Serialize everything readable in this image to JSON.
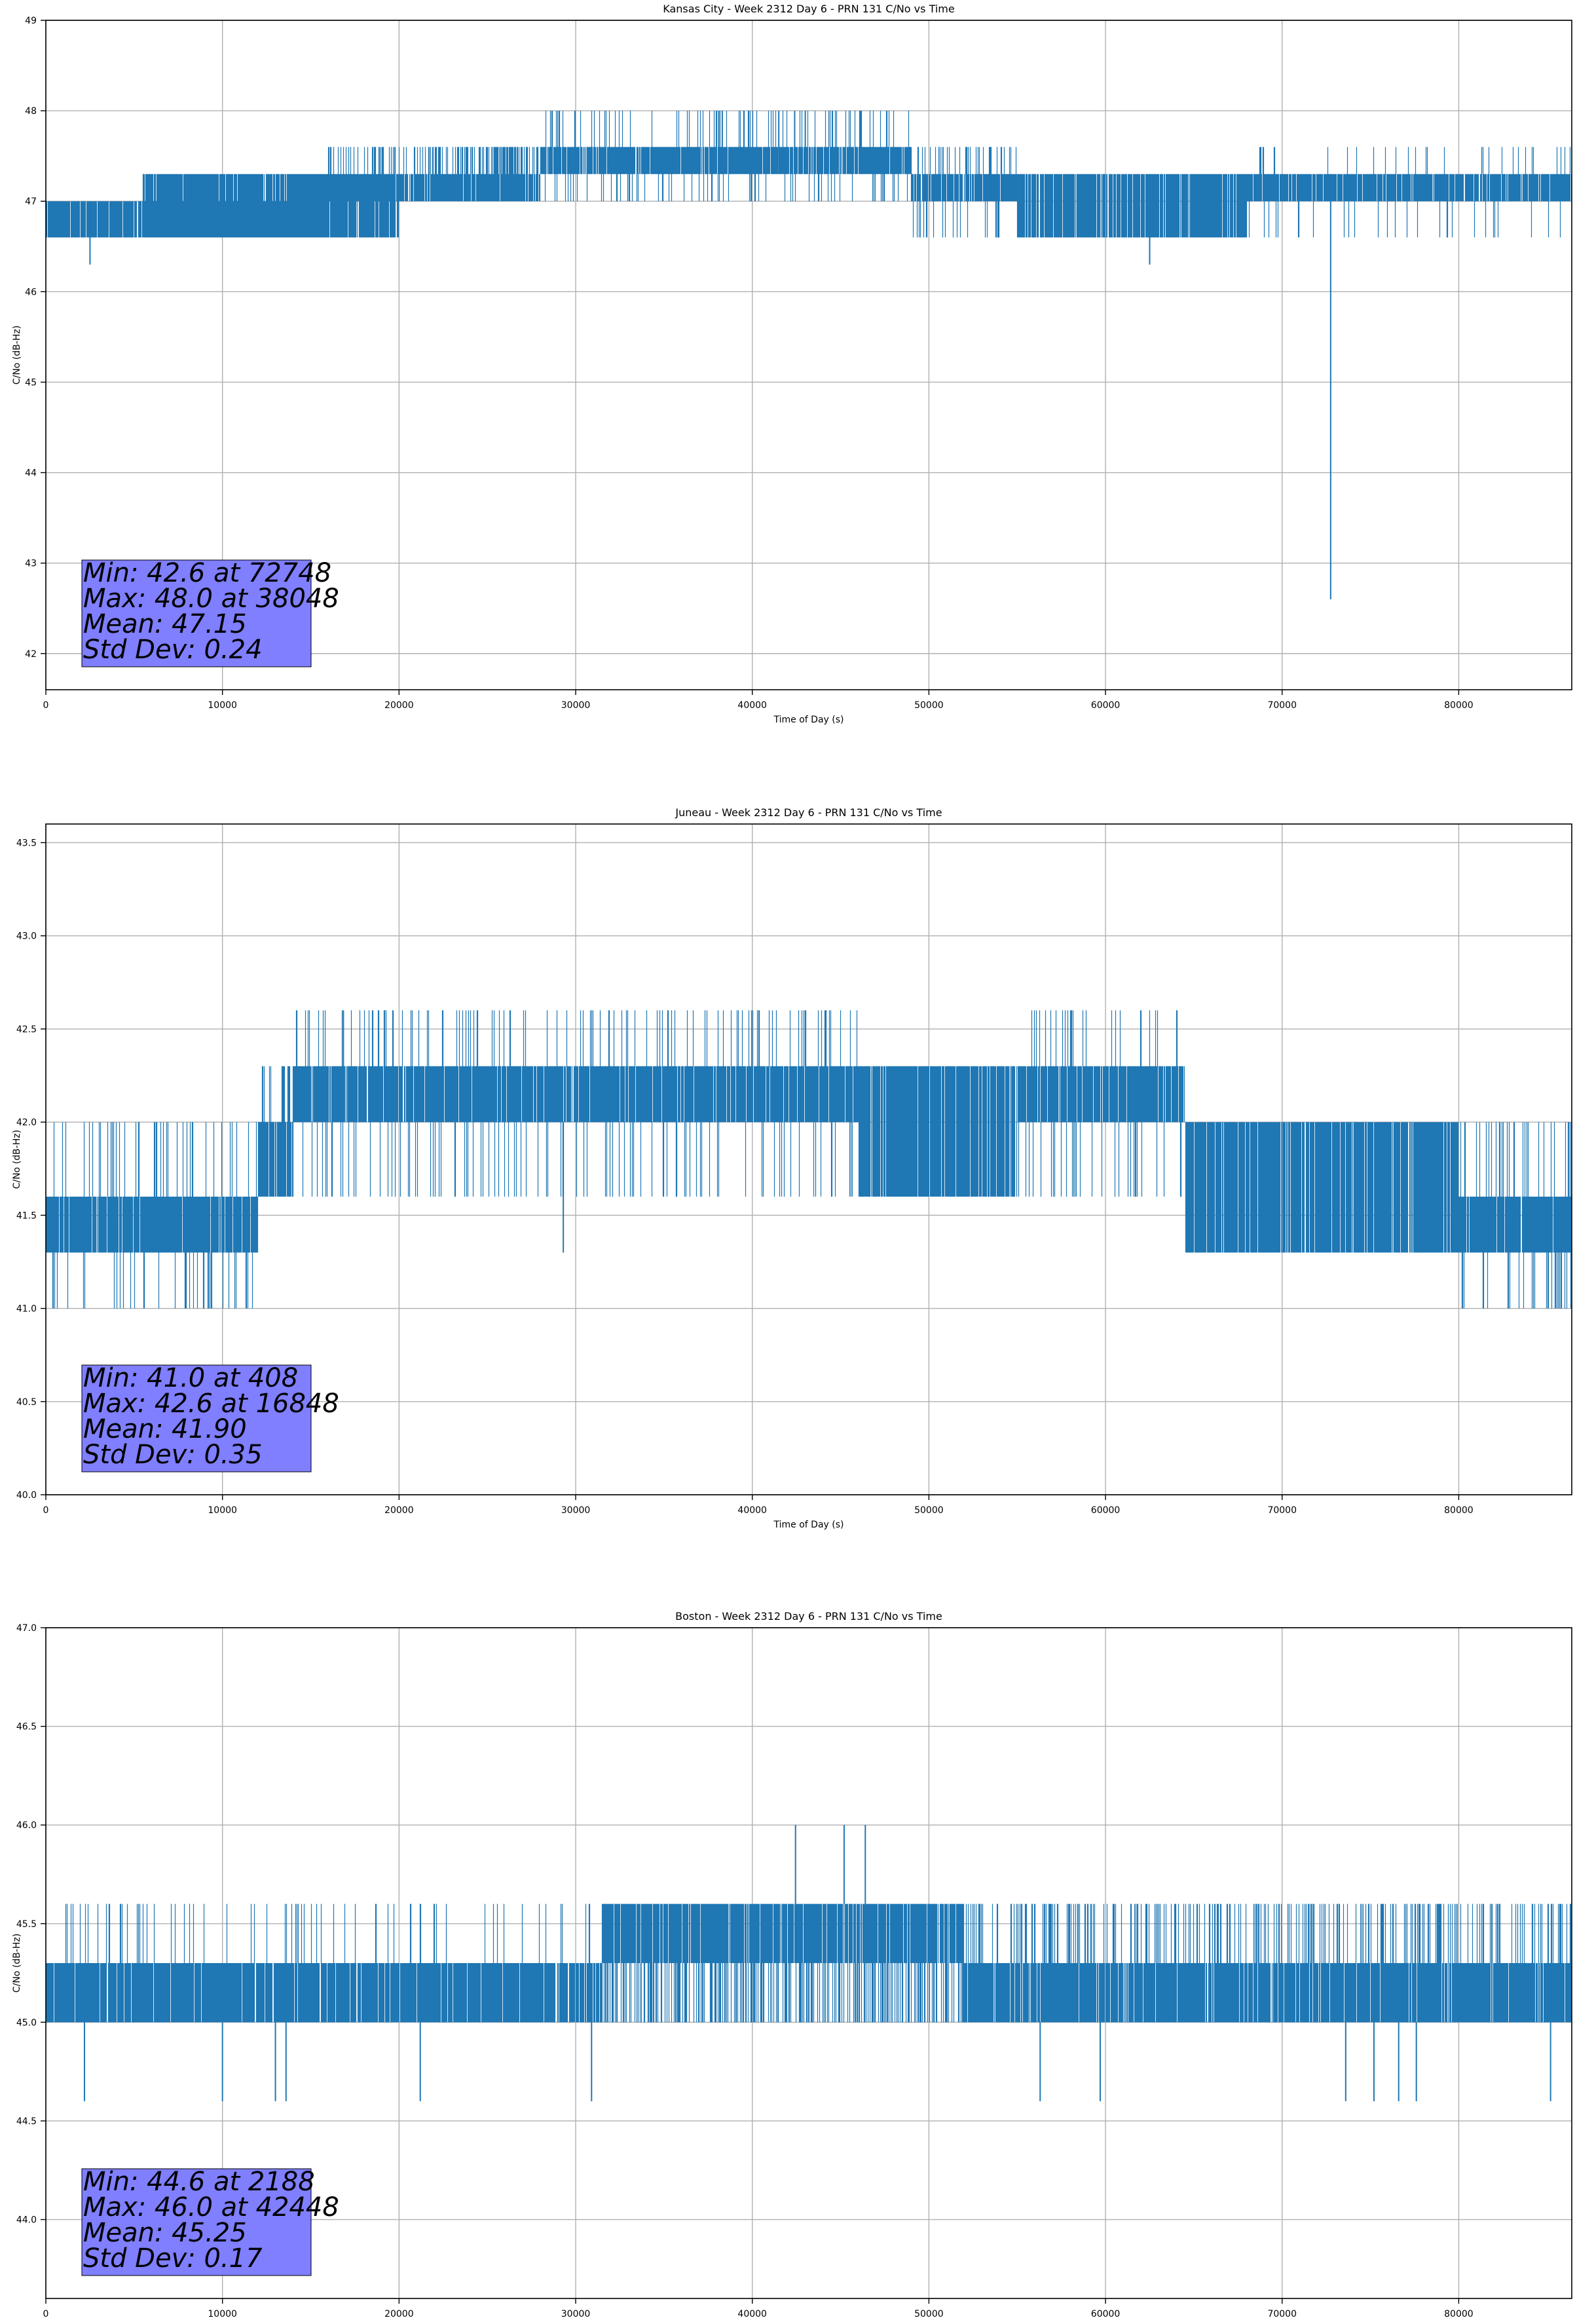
{
  "chart_data": [
    {
      "type": "line",
      "title": "Kansas City - Week 2312 Day 6 - PRN 131 C/No vs Time",
      "xlabel": "Time of Day (s)",
      "ylabel": "C/No (dB-Hz)",
      "xlim": [
        0,
        86400
      ],
      "ylim": [
        41.6,
        49
      ],
      "xticks": [
        0,
        10000,
        20000,
        30000,
        40000,
        50000,
        60000,
        70000,
        80000
      ],
      "yticks": [
        42,
        43,
        44,
        45,
        46,
        47,
        48,
        49
      ],
      "ytick_labels": [
        "42",
        "43",
        "44",
        "45",
        "46",
        "47",
        "48",
        "49"
      ],
      "grid": true,
      "color": "#1f77b4",
      "stats": [
        "Min: 42.6 at 72748",
        "Max: 48.0 at 38048",
        "Mean: 47.15",
        "Std Dev: 0.24"
      ],
      "series": [
        {
          "segments": [
            {
              "x0": 0,
              "x1": 16000,
              "lo": 46.6,
              "hi": 47.0,
              "alt": [
                46.6,
                47.0
              ],
              "frac": 0.55
            },
            {
              "x0": 5500,
              "x1": 20000,
              "lo": 46.6,
              "hi": 47.3,
              "alt": [
                46.6,
                47.3
              ],
              "frac": 0.25
            },
            {
              "x0": 16000,
              "x1": 22000,
              "lo": 47.0,
              "hi": 47.3,
              "alt": [
                47.6
              ],
              "frac": 0.2
            },
            {
              "x0": 22000,
              "x1": 28000,
              "lo": 47.0,
              "hi": 47.3,
              "alt": [
                47.6
              ],
              "frac": 0.45
            },
            {
              "x0": 28000,
              "x1": 49000,
              "lo": 47.3,
              "hi": 47.6,
              "alt": [
                47.0,
                48.0
              ],
              "frac": 0.25
            },
            {
              "x0": 49000,
              "x1": 55000,
              "lo": 47.0,
              "hi": 47.3,
              "alt": [
                46.6,
                47.6
              ],
              "frac": 0.35
            },
            {
              "x0": 55000,
              "x1": 68000,
              "lo": 46.6,
              "hi": 47.3,
              "alt": [
                46.6,
                47.3
              ],
              "frac": 0.4
            },
            {
              "x0": 68000,
              "x1": 86400,
              "lo": 47.0,
              "hi": 47.3,
              "alt": [
                46.6,
                47.6
              ],
              "frac": 0.12
            }
          ],
          "spikes": [
            {
              "x": 2500,
              "y0": 46.3,
              "y1": 47.0
            },
            {
              "x": 62500,
              "y0": 46.3,
              "y1": 47.0
            },
            {
              "x": 38100,
              "y0": 47.3,
              "y1": 48.0
            },
            {
              "x": 38300,
              "y0": 47.3,
              "y1": 48.0
            },
            {
              "x": 41500,
              "y0": 47.3,
              "y1": 48.0
            },
            {
              "x": 42400,
              "y0": 47.3,
              "y1": 48.0
            },
            {
              "x": 43000,
              "y0": 47.3,
              "y1": 48.0
            },
            {
              "x": 72748,
              "y0": 42.6,
              "y1": 47.3
            }
          ]
        }
      ]
    },
    {
      "type": "line",
      "title": "Juneau - Week 2312 Day 6 - PRN 131 C/No vs Time",
      "xlabel": "Time of Day (s)",
      "ylabel": "C/No (dB-Hz)",
      "xlim": [
        0,
        86400
      ],
      "ylim": [
        40.0,
        43.6
      ],
      "xticks": [
        0,
        10000,
        20000,
        30000,
        40000,
        50000,
        60000,
        70000,
        80000
      ],
      "yticks": [
        40.0,
        40.5,
        41.0,
        41.5,
        42.0,
        42.5,
        43.0,
        43.5
      ],
      "ytick_labels": [
        "40.0",
        "40.5",
        "41.0",
        "41.5",
        "42.0",
        "42.5",
        "43.0",
        "43.5"
      ],
      "grid": true,
      "color": "#1f77b4",
      "stats": [
        "Min: 41.0 at 408",
        "Max: 42.6 at 16848",
        "Mean: 41.90",
        "Std Dev: 0.35"
      ],
      "series": [
        {
          "segments": [
            {
              "x0": 0,
              "x1": 12000,
              "lo": 41.3,
              "hi": 41.6,
              "alt": [
                41.0,
                42.0
              ],
              "frac": 0.2
            },
            {
              "x0": 12000,
              "x1": 14000,
              "lo": 41.6,
              "hi": 42.0,
              "alt": [
                42.3
              ],
              "frac": 0.3
            },
            {
              "x0": 14000,
              "x1": 46000,
              "lo": 42.0,
              "hi": 42.3,
              "alt": [
                41.6,
                42.6
              ],
              "frac": 0.22
            },
            {
              "x0": 46000,
              "x1": 55000,
              "lo": 41.6,
              "hi": 42.3,
              "alt": [
                41.6,
                42.3
              ],
              "frac": 0.45
            },
            {
              "x0": 55000,
              "x1": 64500,
              "lo": 42.0,
              "hi": 42.3,
              "alt": [
                41.6,
                42.6
              ],
              "frac": 0.2
            },
            {
              "x0": 64500,
              "x1": 80000,
              "lo": 41.3,
              "hi": 42.0,
              "alt": [
                41.3,
                42.0
              ],
              "frac": 0.4
            },
            {
              "x0": 80000,
              "x1": 86400,
              "lo": 41.3,
              "hi": 41.6,
              "alt": [
                41.0,
                42.0
              ],
              "frac": 0.3
            }
          ],
          "spikes": [
            {
              "x": 408,
              "y0": 41.0,
              "y1": 41.6
            },
            {
              "x": 29300,
              "y0": 41.3,
              "y1": 42.0
            },
            {
              "x": 16848,
              "y0": 42.3,
              "y1": 42.6
            }
          ]
        }
      ]
    },
    {
      "type": "line",
      "title": "Boston - Week 2312 Day 6 - PRN 131 C/No vs Time",
      "xlabel": "Time of Day (s)",
      "ylabel": "C/No (dB-Hz)",
      "xlim": [
        0,
        86400
      ],
      "ylim": [
        43.6,
        47.0
      ],
      "xticks": [
        0,
        10000,
        20000,
        30000,
        40000,
        50000,
        60000,
        70000,
        80000
      ],
      "yticks": [
        44.0,
        44.5,
        45.0,
        45.5,
        46.0,
        46.5,
        47.0
      ],
      "ytick_labels": [
        "44.0",
        "44.5",
        "45.0",
        "45.5",
        "46.0",
        "46.5",
        "47.0"
      ],
      "grid": true,
      "color": "#1f77b4",
      "stats": [
        "Min: 44.6 at 2188",
        "Max: 46.0 at 42448",
        "Mean: 45.25",
        "Std Dev: 0.17"
      ],
      "series": [
        {
          "segments": [
            {
              "x0": 0,
              "x1": 31500,
              "lo": 45.0,
              "hi": 45.3,
              "alt": [
                45.6
              ],
              "frac": 0.08
            },
            {
              "x0": 31500,
              "x1": 52000,
              "lo": 45.3,
              "hi": 45.6,
              "alt": [
                45.0
              ],
              "frac": 0.45
            },
            {
              "x0": 52000,
              "x1": 86400,
              "lo": 45.0,
              "hi": 45.3,
              "alt": [
                45.6
              ],
              "frac": 0.25
            }
          ],
          "spikes": [
            {
              "x": 2188,
              "y0": 44.6,
              "y1": 45.0
            },
            {
              "x": 10000,
              "y0": 44.6,
              "y1": 45.0
            },
            {
              "x": 13000,
              "y0": 44.6,
              "y1": 45.0
            },
            {
              "x": 13600,
              "y0": 44.6,
              "y1": 45.0
            },
            {
              "x": 21200,
              "y0": 44.6,
              "y1": 45.0
            },
            {
              "x": 30900,
              "y0": 44.6,
              "y1": 45.0
            },
            {
              "x": 56300,
              "y0": 44.6,
              "y1": 45.0
            },
            {
              "x": 59700,
              "y0": 44.6,
              "y1": 45.0
            },
            {
              "x": 73600,
              "y0": 44.6,
              "y1": 45.0
            },
            {
              "x": 75200,
              "y0": 44.6,
              "y1": 45.0
            },
            {
              "x": 76600,
              "y0": 44.6,
              "y1": 45.0
            },
            {
              "x": 77600,
              "y0": 44.6,
              "y1": 45.0
            },
            {
              "x": 85200,
              "y0": 44.6,
              "y1": 45.0
            },
            {
              "x": 42448,
              "y0": 45.6,
              "y1": 46.0
            },
            {
              "x": 45200,
              "y0": 45.6,
              "y1": 46.0
            },
            {
              "x": 46400,
              "y0": 45.6,
              "y1": 46.0
            }
          ]
        }
      ]
    }
  ]
}
